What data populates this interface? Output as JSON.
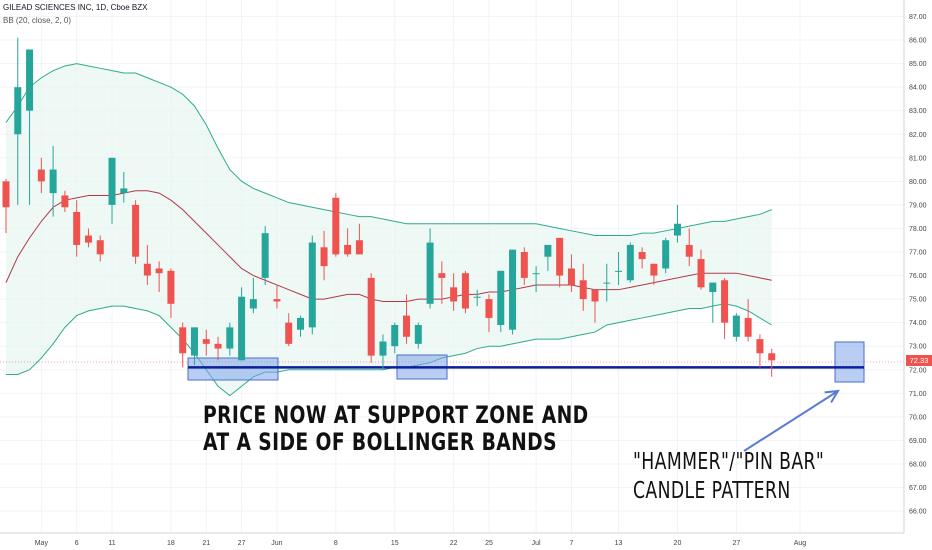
{
  "legend": {
    "title": "GILEAD SCIENCES INC, 1D, Cboe BZX",
    "indicator": "BB (20, close, 2, 0)"
  },
  "annotations": {
    "support": "PRICE NOW AT SUPPORT ZONE AND\nAT A SIDE OF BOLLINGER BANDS",
    "pattern": "\"HAMMER\"/\"PIN BAR\"\nCANDLE PATTERN"
  },
  "current_price": "72.33",
  "colors": {
    "up": "#26a69a",
    "down": "#ef5350",
    "basis": "#b03a48",
    "band": "#2eab8c",
    "band_fill": "#e8f5f2",
    "support_line": "#0c1e9c",
    "zone": "#7fa6e8",
    "arrow": "#5a7ad6"
  },
  "chart_data": {
    "type": "candlestick",
    "title": "GILEAD SCIENCES INC, 1D, Cboe BZX",
    "ylim": [
      65.4,
      87.6
    ],
    "yticks": [
      "66.00",
      "67.00",
      "68.00",
      "69.00",
      "70.00",
      "71.00",
      "72.00",
      "73.00",
      "74.00",
      "75.00",
      "76.00",
      "77.00",
      "78.00",
      "79.00",
      "80.00",
      "81.00",
      "82.00",
      "83.00",
      "84.00",
      "85.00",
      "86.00",
      "87.00"
    ],
    "xticks": [
      {
        "label": "May",
        "i": 3
      },
      {
        "label": "6",
        "i": 6
      },
      {
        "label": "11",
        "i": 9
      },
      {
        "label": "18",
        "i": 14
      },
      {
        "label": "21",
        "i": 17
      },
      {
        "label": "27",
        "i": 20
      },
      {
        "label": "Jun",
        "i": 23
      },
      {
        "label": "8",
        "i": 28
      },
      {
        "label": "15",
        "i": 33
      },
      {
        "label": "22",
        "i": 38
      },
      {
        "label": "25",
        "i": 41
      },
      {
        "label": "Jul",
        "i": 45
      },
      {
        "label": "7",
        "i": 48
      },
      {
        "label": "13",
        "i": 52
      },
      {
        "label": "20",
        "i": 57
      },
      {
        "label": "27",
        "i": 62
      },
      {
        "label": "Aug",
        "i": 67.4
      }
    ],
    "candles": [
      {
        "o": 80.0,
        "h": 80.1,
        "l": 77.8,
        "c": 78.9
      },
      {
        "o": 82.0,
        "h": 86.1,
        "l": 79.0,
        "c": 84.0
      },
      {
        "o": 83.0,
        "h": 85.6,
        "l": 79.0,
        "c": 85.6
      },
      {
        "o": 80.5,
        "h": 81.0,
        "l": 79.5,
        "c": 80.0
      },
      {
        "o": 79.5,
        "h": 81.5,
        "l": 78.5,
        "c": 80.5
      },
      {
        "o": 79.4,
        "h": 79.6,
        "l": 78.7,
        "c": 78.9
      },
      {
        "o": 78.7,
        "h": 79.2,
        "l": 76.8,
        "c": 77.3
      },
      {
        "o": 77.7,
        "h": 78.0,
        "l": 77.2,
        "c": 77.4
      },
      {
        "o": 77.5,
        "h": 77.7,
        "l": 76.6,
        "c": 76.9
      },
      {
        "o": 79.0,
        "h": 81.0,
        "l": 78.2,
        "c": 81.0
      },
      {
        "o": 79.5,
        "h": 80.4,
        "l": 79.1,
        "c": 79.7
      },
      {
        "o": 79.0,
        "h": 79.2,
        "l": 76.5,
        "c": 76.8
      },
      {
        "o": 76.5,
        "h": 77.3,
        "l": 75.6,
        "c": 76.0
      },
      {
        "o": 76.3,
        "h": 76.6,
        "l": 75.3,
        "c": 76.1
      },
      {
        "o": 76.2,
        "h": 76.3,
        "l": 74.2,
        "c": 74.8
      },
      {
        "o": 73.8,
        "h": 74.0,
        "l": 72.1,
        "c": 72.7
      },
      {
        "o": 72.6,
        "h": 73.8,
        "l": 72.2,
        "c": 73.8
      },
      {
        "o": 73.3,
        "h": 73.7,
        "l": 72.6,
        "c": 73.1
      },
      {
        "o": 73.1,
        "h": 73.4,
        "l": 72.4,
        "c": 72.9
      },
      {
        "o": 72.9,
        "h": 74.0,
        "l": 72.6,
        "c": 73.8
      },
      {
        "o": 72.4,
        "h": 75.5,
        "l": 72.4,
        "c": 75.1
      },
      {
        "o": 74.6,
        "h": 75.9,
        "l": 74.4,
        "c": 75.0
      },
      {
        "o": 75.9,
        "h": 78.1,
        "l": 75.6,
        "c": 77.8
      },
      {
        "o": 75.0,
        "h": 75.6,
        "l": 74.6,
        "c": 74.9
      },
      {
        "o": 74.0,
        "h": 74.4,
        "l": 73.0,
        "c": 73.1
      },
      {
        "o": 73.7,
        "h": 74.3,
        "l": 73.4,
        "c": 74.2
      },
      {
        "o": 73.8,
        "h": 77.7,
        "l": 73.5,
        "c": 77.4
      },
      {
        "o": 77.2,
        "h": 77.9,
        "l": 75.8,
        "c": 76.4
      },
      {
        "o": 79.3,
        "h": 79.5,
        "l": 76.8,
        "c": 76.9
      },
      {
        "o": 77.3,
        "h": 78.0,
        "l": 76.8,
        "c": 76.9
      },
      {
        "o": 77.5,
        "h": 78.2,
        "l": 76.9,
        "c": 76.9
      },
      {
        "o": 75.9,
        "h": 76.1,
        "l": 72.3,
        "c": 72.6
      },
      {
        "o": 72.6,
        "h": 73.5,
        "l": 72.0,
        "c": 73.2
      },
      {
        "o": 73.0,
        "h": 74.0,
        "l": 72.7,
        "c": 73.9
      },
      {
        "o": 74.3,
        "h": 75.2,
        "l": 73.1,
        "c": 73.4
      },
      {
        "o": 73.1,
        "h": 74.0,
        "l": 72.9,
        "c": 73.9
      },
      {
        "o": 74.8,
        "h": 78.0,
        "l": 74.6,
        "c": 77.4
      },
      {
        "o": 76.1,
        "h": 76.6,
        "l": 74.8,
        "c": 75.9
      },
      {
        "o": 75.5,
        "h": 76.1,
        "l": 74.5,
        "c": 74.9
      },
      {
        "o": 76.1,
        "h": 76.2,
        "l": 74.4,
        "c": 74.6
      },
      {
        "o": 75.1,
        "h": 75.4,
        "l": 74.7,
        "c": 75.1
      },
      {
        "o": 75.0,
        "h": 75.2,
        "l": 73.6,
        "c": 74.2
      },
      {
        "o": 73.9,
        "h": 76.2,
        "l": 73.6,
        "c": 76.2
      },
      {
        "o": 73.7,
        "h": 77.1,
        "l": 73.5,
        "c": 77.1
      },
      {
        "o": 77.0,
        "h": 77.2,
        "l": 75.6,
        "c": 75.9
      },
      {
        "o": 76.1,
        "h": 76.4,
        "l": 75.3,
        "c": 76.1
      },
      {
        "o": 76.8,
        "h": 77.3,
        "l": 76.2,
        "c": 77.3
      },
      {
        "o": 77.6,
        "h": 77.6,
        "l": 75.5,
        "c": 76.0
      },
      {
        "o": 76.3,
        "h": 76.9,
        "l": 75.3,
        "c": 75.6
      },
      {
        "o": 75.8,
        "h": 76.5,
        "l": 74.5,
        "c": 75.0
      },
      {
        "o": 75.4,
        "h": 75.4,
        "l": 74.0,
        "c": 74.9
      },
      {
        "o": 75.7,
        "h": 76.5,
        "l": 74.9,
        "c": 75.7
      },
      {
        "o": 76.2,
        "h": 77.0,
        "l": 75.6,
        "c": 76.2
      },
      {
        "o": 75.8,
        "h": 77.4,
        "l": 75.7,
        "c": 77.3
      },
      {
        "o": 77.0,
        "h": 77.2,
        "l": 76.3,
        "c": 76.7
      },
      {
        "o": 76.5,
        "h": 76.5,
        "l": 75.6,
        "c": 76.0
      },
      {
        "o": 76.3,
        "h": 77.6,
        "l": 76.1,
        "c": 77.5
      },
      {
        "o": 77.7,
        "h": 79.0,
        "l": 77.4,
        "c": 78.2
      },
      {
        "o": 77.3,
        "h": 78.0,
        "l": 76.4,
        "c": 76.8
      },
      {
        "o": 76.7,
        "h": 77.1,
        "l": 75.4,
        "c": 75.5
      },
      {
        "o": 75.3,
        "h": 75.7,
        "l": 74.0,
        "c": 75.7
      },
      {
        "o": 75.8,
        "h": 75.9,
        "l": 73.3,
        "c": 74.0
      },
      {
        "o": 73.4,
        "h": 74.4,
        "l": 73.2,
        "c": 74.3
      },
      {
        "o": 74.2,
        "h": 75.0,
        "l": 73.2,
        "c": 73.4
      },
      {
        "o": 73.3,
        "h": 73.5,
        "l": 72.1,
        "c": 72.7
      },
      {
        "o": 72.7,
        "h": 72.9,
        "l": 71.7,
        "c": 72.4
      }
    ],
    "bb_basis": [
      75.7,
      76.8,
      77.6,
      78.3,
      78.9,
      79.2,
      79.3,
      79.4,
      79.4,
      79.4,
      79.5,
      79.6,
      79.6,
      79.5,
      79.2,
      78.8,
      78.3,
      77.8,
      77.3,
      76.8,
      76.3,
      76.0,
      75.8,
      75.6,
      75.4,
      75.2,
      75.0,
      75.0,
      75.1,
      75.2,
      75.2,
      75.0,
      74.9,
      74.9,
      74.9,
      75.0,
      75.0,
      75.0,
      75.1,
      75.2,
      75.2,
      75.3,
      75.3,
      75.4,
      75.5,
      75.6,
      75.6,
      75.6,
      75.6,
      75.5,
      75.4,
      75.4,
      75.4,
      75.5,
      75.6,
      75.7,
      75.8,
      75.9,
      76.0,
      76.1,
      76.1,
      76.1,
      76.1,
      76.0,
      75.9,
      75.8
    ],
    "bb_upper": [
      82.5,
      83.2,
      84.0,
      84.4,
      84.7,
      84.9,
      85.0,
      84.9,
      84.8,
      84.7,
      84.6,
      84.6,
      84.4,
      84.2,
      84.0,
      83.7,
      83.2,
      82.4,
      81.4,
      80.5,
      80.0,
      79.7,
      79.5,
      79.3,
      79.1,
      79.0,
      78.9,
      78.8,
      78.7,
      78.6,
      78.5,
      78.5,
      78.4,
      78.3,
      78.2,
      78.2,
      78.2,
      78.2,
      78.2,
      78.2,
      78.2,
      78.2,
      78.2,
      78.2,
      78.2,
      78.2,
      78.1,
      78.0,
      77.9,
      77.8,
      77.7,
      77.7,
      77.7,
      77.7,
      77.8,
      77.8,
      77.9,
      78.0,
      78.1,
      78.2,
      78.3,
      78.3,
      78.4,
      78.5,
      78.6,
      78.8
    ],
    "bb_lower": [
      71.8,
      71.8,
      72.0,
      72.5,
      73.1,
      73.8,
      74.3,
      74.5,
      74.6,
      74.7,
      74.7,
      74.6,
      74.5,
      74.3,
      73.8,
      73.3,
      72.7,
      72.0,
      71.3,
      70.9,
      71.3,
      71.7,
      71.9,
      71.9,
      72.0,
      72.0,
      72.0,
      72.0,
      72.0,
      72.0,
      72.0,
      72.0,
      72.0,
      72.1,
      72.1,
      72.2,
      72.3,
      72.5,
      72.6,
      72.7,
      72.9,
      73.0,
      73.0,
      73.1,
      73.2,
      73.3,
      73.3,
      73.3,
      73.4,
      73.5,
      73.6,
      73.9,
      74.0,
      74.1,
      74.2,
      74.3,
      74.4,
      74.5,
      74.6,
      74.6,
      74.7,
      74.8,
      74.7,
      74.5,
      74.2,
      73.9
    ],
    "support_level": 72.1,
    "last_price": 72.33
  }
}
